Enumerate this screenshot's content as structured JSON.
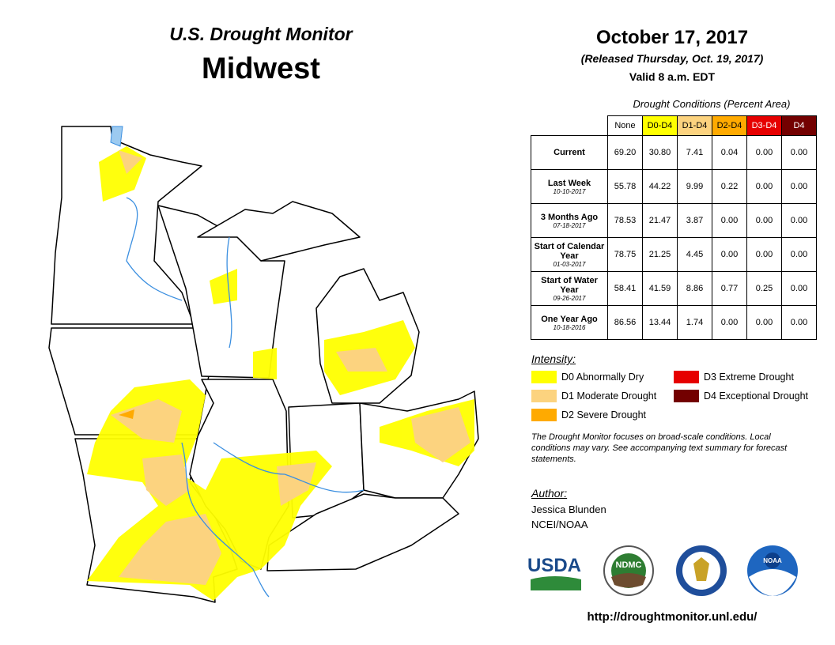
{
  "header": {
    "title": "U.S. Drought Monitor",
    "region": "Midwest",
    "date": "October 17, 2017",
    "released": "(Released Thursday, Oct. 19, 2017)",
    "valid": "Valid 8 a.m. EDT"
  },
  "table": {
    "caption": "Drought Conditions (Percent Area)",
    "columns": [
      {
        "label": "None",
        "color": "#ffffff",
        "text": "#000000"
      },
      {
        "label": "D0-D4",
        "color": "#ffff00",
        "text": "#000000"
      },
      {
        "label": "D1-D4",
        "color": "#fcd37f",
        "text": "#000000"
      },
      {
        "label": "D2-D4",
        "color": "#ffaa00",
        "text": "#000000"
      },
      {
        "label": "D3-D4",
        "color": "#e60000",
        "text": "#ffffff"
      },
      {
        "label": "D4",
        "color": "#730000",
        "text": "#ffffff"
      }
    ],
    "rows": [
      {
        "label": "Current",
        "values": [
          "69.20",
          "30.80",
          "7.41",
          "0.04",
          "0.00",
          "0.00"
        ]
      },
      {
        "label": "Last Week",
        "date": "10-10-2017",
        "values": [
          "55.78",
          "44.22",
          "9.99",
          "0.22",
          "0.00",
          "0.00"
        ]
      },
      {
        "label": "3 Months Ago",
        "date": "07-18-2017",
        "values": [
          "78.53",
          "21.47",
          "3.87",
          "0.00",
          "0.00",
          "0.00"
        ]
      },
      {
        "label": "Start of Calendar Year",
        "date": "01-03-2017",
        "values": [
          "78.75",
          "21.25",
          "4.45",
          "0.00",
          "0.00",
          "0.00"
        ]
      },
      {
        "label": "Start of Water Year",
        "date": "09-26-2017",
        "values": [
          "58.41",
          "41.59",
          "8.86",
          "0.77",
          "0.25",
          "0.00"
        ]
      },
      {
        "label": "One Year Ago",
        "date": "10-18-2016",
        "values": [
          "86.56",
          "13.44",
          "1.74",
          "0.00",
          "0.00",
          "0.00"
        ]
      }
    ]
  },
  "legend": {
    "title": "Intensity:",
    "items": [
      {
        "label": "D0 Abnormally Dry",
        "color": "#ffff00"
      },
      {
        "label": "D3 Extreme Drought",
        "color": "#e60000"
      },
      {
        "label": "D1 Moderate Drought",
        "color": "#fcd37f"
      },
      {
        "label": "D4 Exceptional Drought",
        "color": "#730000"
      },
      {
        "label": "D2 Severe Drought",
        "color": "#ffaa00"
      }
    ]
  },
  "note": "The Drought Monitor focuses on broad-scale conditions. Local conditions may vary. See accompanying text summary for forecast statements.",
  "author": {
    "title": "Author:",
    "name": "Jessica Blunden",
    "org": "NCEI/NOAA"
  },
  "logos": [
    "USDA",
    "NDMC",
    "NOAA"
  ],
  "url": "http://droughtmonitor.unl.edu/"
}
